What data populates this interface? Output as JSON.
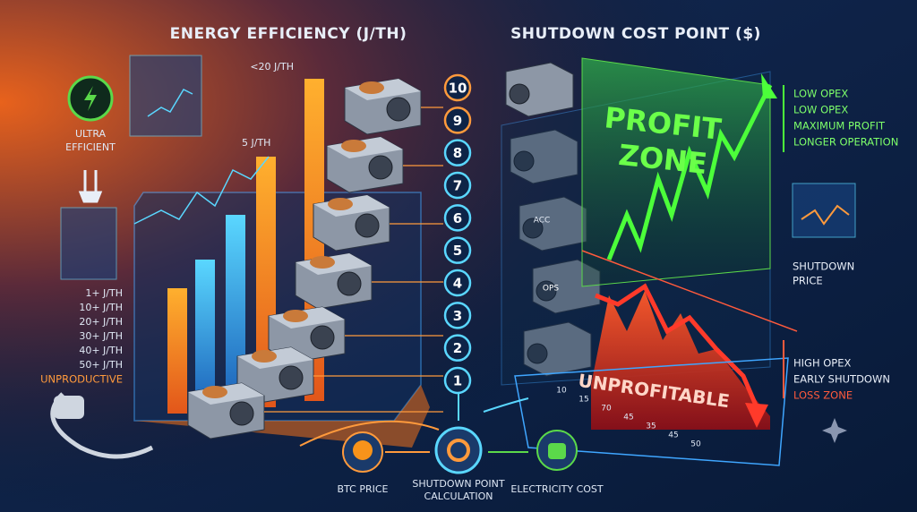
{
  "left_panel": {
    "title": "ENERGY EFFICIENCY (J/TH)",
    "badge": [
      "ULTRA",
      "EFFICIENT"
    ],
    "top_labels": [
      "<20 J/TH",
      "5 J/TH"
    ],
    "efficiency_list": [
      "1+ J/TH",
      "10+ J/TH",
      "20+ J/TH",
      "30+ J/TH",
      "40+ J/TH",
      "50+ J/TH",
      "UNPRODUCTIVE"
    ]
  },
  "steps": [
    "10",
    "9",
    "8",
    "7",
    "6",
    "5",
    "4",
    "3",
    "2",
    "1"
  ],
  "right_panel": {
    "title": "SHUTDOWN COST POINT ($)",
    "profit_zone": [
      "PROFIT",
      "ZONE"
    ],
    "profit_notes": [
      "LOW OPEX",
      "LOW OPEX",
      "MAXIMUM PROFIT",
      "LONGER OPERATION"
    ],
    "shutdown_price": [
      "SHUTDOWN",
      "PRICE"
    ],
    "loss_notes": [
      "HIGH OPEX",
      "EARLY SHUTDOWN",
      "LOSS ZONE"
    ],
    "loss_label": "UNPROFITABLE",
    "axis_labels": [
      "10",
      "15",
      "70",
      "45",
      "35",
      "45",
      "50"
    ],
    "machine_labels": [
      "ACC",
      "OPS"
    ]
  },
  "footer": {
    "btc_price": "BTC PRICE",
    "calculation": [
      "SHUTDOWN POINT",
      "CALCULATION"
    ],
    "electricity_cost": "ELECTRICITY COST"
  }
}
